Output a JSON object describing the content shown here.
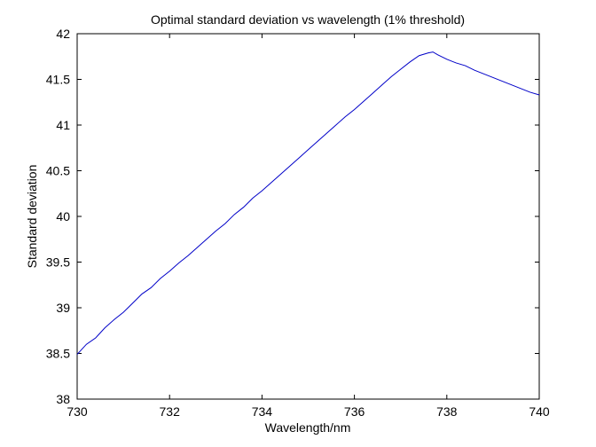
{
  "chart_data": {
    "type": "line",
    "title": "Optimal standard deviation vs wavelength (1% threshold)",
    "xlabel": "Wavelength/nm",
    "ylabel": "Standard deviation",
    "xlim": [
      730,
      740
    ],
    "ylim": [
      38,
      42
    ],
    "xticks": [
      730,
      732,
      734,
      736,
      738,
      740
    ],
    "yticks": [
      38,
      38.5,
      39,
      39.5,
      40,
      40.5,
      41,
      41.5,
      42
    ],
    "grid": false,
    "legend": "none",
    "colors": {
      "line": "#0000c8",
      "axes": "#000000",
      "background": "#ffffff"
    },
    "series": [
      {
        "x": [
          730.0,
          730.2,
          730.4,
          730.6,
          730.8,
          731.0,
          731.2,
          731.4,
          731.6,
          731.8,
          732.0,
          732.2,
          732.4,
          732.6,
          732.8,
          733.0,
          733.2,
          733.4,
          733.6,
          733.8,
          734.0,
          734.2,
          734.4,
          734.6,
          734.8,
          735.0,
          735.2,
          735.4,
          735.6,
          735.8,
          736.0,
          736.2,
          736.4,
          736.6,
          736.8,
          737.0,
          737.2,
          737.4,
          737.6,
          737.7,
          737.8,
          738.0,
          738.2,
          738.4,
          738.6,
          738.8,
          739.0,
          739.2,
          739.4,
          739.6,
          739.8,
          740.0
        ],
        "values": [
          38.49,
          38.6,
          38.67,
          38.78,
          38.87,
          38.95,
          39.05,
          39.15,
          39.22,
          39.32,
          39.4,
          39.49,
          39.57,
          39.66,
          39.75,
          39.84,
          39.92,
          40.02,
          40.1,
          40.2,
          40.28,
          40.37,
          40.46,
          40.55,
          40.64,
          40.73,
          40.82,
          40.91,
          41.0,
          41.09,
          41.17,
          41.26,
          41.35,
          41.44,
          41.53,
          41.61,
          41.69,
          41.76,
          41.79,
          41.8,
          41.77,
          41.72,
          41.68,
          41.65,
          41.6,
          41.56,
          41.52,
          41.48,
          41.44,
          41.4,
          41.36,
          41.33
        ]
      }
    ]
  }
}
